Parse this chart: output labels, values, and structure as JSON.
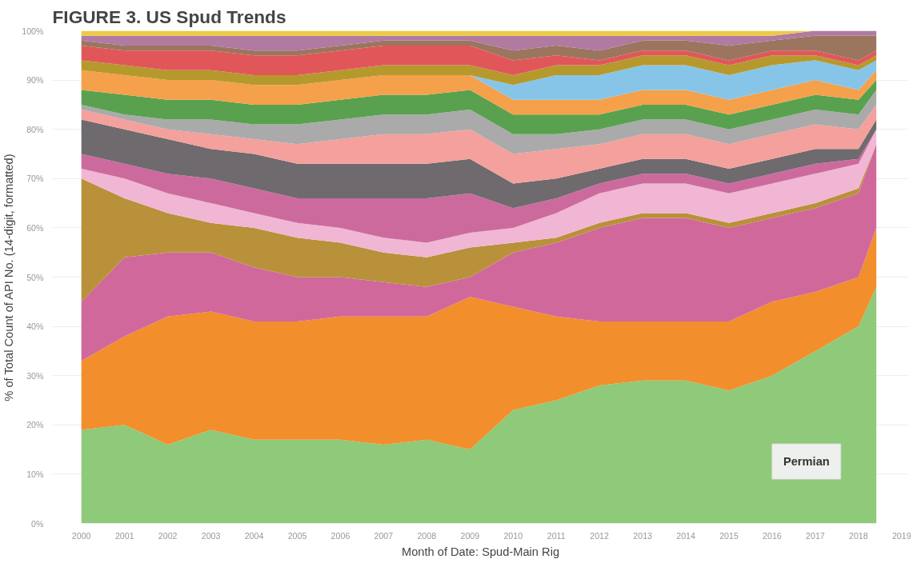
{
  "chart_data": {
    "type": "area",
    "stacked": true,
    "title": "FIGURE 3. US Spud Trends",
    "xlabel": "Month of Date: Spud-Main Rig",
    "ylabel": "% of Total Count of API No. (14-digit, formatted)",
    "x": [
      "2000-01",
      "2001-01",
      "2002-01",
      "2003-01",
      "2004-01",
      "2005-01",
      "2006-01",
      "2007-01",
      "2008-01",
      "2009-01",
      "2010-01",
      "2011-01",
      "2012-01",
      "2013-01",
      "2014-01",
      "2015-01",
      "2016-01",
      "2017-01",
      "2018-01",
      "2018-06"
    ],
    "xlim": [
      "1999-05",
      "2019-03"
    ],
    "xticks": [
      "2000",
      "2001",
      "2002",
      "2003",
      "2004",
      "2005",
      "2006",
      "2007",
      "2008",
      "2009",
      "2010",
      "2011",
      "2012",
      "2013",
      "2014",
      "2015",
      "2016",
      "2017",
      "2018",
      "2019"
    ],
    "ylim": [
      0,
      100
    ],
    "yticks": [
      {
        "value": 0,
        "label": "0%"
      },
      {
        "value": 10,
        "label": "10%"
      },
      {
        "value": 20,
        "label": "20%"
      },
      {
        "value": 30,
        "label": "30%"
      },
      {
        "value": 40,
        "label": "40%"
      },
      {
        "value": 50,
        "label": "50%"
      },
      {
        "value": 60,
        "label": "60%"
      },
      {
        "value": 70,
        "label": "70%"
      },
      {
        "value": 80,
        "label": "80%"
      },
      {
        "value": 90,
        "label": "90%"
      },
      {
        "value": 100,
        "label": "100%"
      }
    ],
    "grid": "y",
    "series": [
      {
        "name": "Permian",
        "color": "#8fc97a",
        "values": [
          19,
          20,
          16,
          19,
          17,
          17,
          17,
          16,
          17,
          15,
          23,
          25,
          28,
          29,
          29,
          27,
          30,
          35,
          40,
          48
        ]
      },
      {
        "color": "#f28e2b",
        "values": [
          14,
          18,
          26,
          24,
          24,
          24,
          25,
          26,
          25,
          31,
          21,
          17,
          13,
          12,
          12,
          14,
          15,
          12,
          10,
          12
        ]
      },
      {
        "color": "#d1689b",
        "values": [
          12,
          16,
          13,
          12,
          11,
          9,
          8,
          7,
          6,
          4,
          11,
          15,
          19,
          21,
          21,
          19,
          17,
          17,
          17,
          17
        ]
      },
      {
        "color": "#b8913a",
        "values": [
          25,
          12,
          8,
          6,
          8,
          8,
          7,
          6,
          6,
          6,
          2,
          1,
          1,
          1,
          1,
          1,
          1,
          1,
          1,
          0
        ]
      },
      {
        "color": "#f1b6d3",
        "values": [
          2,
          4,
          4,
          4,
          3,
          3,
          3,
          3,
          3,
          3,
          3,
          5,
          6,
          6,
          6,
          6,
          6,
          6,
          5,
          3
        ]
      },
      {
        "color": "#cc6a9e",
        "values": [
          3,
          3,
          4,
          5,
          5,
          5,
          6,
          8,
          9,
          8,
          4,
          3,
          2,
          2,
          2,
          2,
          2,
          2,
          1,
          0
        ]
      },
      {
        "color": "#6e6a6e",
        "values": [
          7,
          7,
          7,
          6,
          7,
          7,
          7,
          7,
          7,
          7,
          5,
          4,
          3,
          3,
          3,
          3,
          3,
          3,
          2,
          2
        ]
      },
      {
        "color": "#f4a09c",
        "values": [
          2,
          2,
          2,
          3,
          3,
          4,
          5,
          6,
          6,
          6,
          6,
          6,
          5,
          5,
          5,
          5,
          5,
          5,
          4,
          3
        ]
      },
      {
        "color": "#aaaaaa",
        "values": [
          1,
          1,
          2,
          3,
          3,
          4,
          4,
          4,
          4,
          4,
          4,
          3,
          3,
          3,
          3,
          3,
          3,
          3,
          3,
          3
        ]
      },
      {
        "color": "#59a14f",
        "values": [
          3,
          4,
          4,
          4,
          4,
          4,
          4,
          4,
          4,
          4,
          4,
          4,
          3,
          3,
          3,
          3,
          3,
          3,
          3,
          2
        ]
      },
      {
        "color": "#f5a04a",
        "values": [
          4,
          4,
          4,
          4,
          4,
          4,
          4,
          4,
          4,
          3,
          3,
          3,
          3,
          3,
          3,
          3,
          3,
          3,
          2,
          2
        ]
      },
      {
        "color": "#86c5e8",
        "values": [
          0,
          0,
          0,
          0,
          0,
          0,
          0,
          0,
          0,
          0,
          3,
          5,
          5,
          5,
          5,
          5,
          5,
          4,
          4,
          2
        ]
      },
      {
        "color": "#b6992d",
        "values": [
          2,
          2,
          2,
          2,
          2,
          2,
          2,
          2,
          2,
          2,
          2,
          2,
          2,
          2,
          2,
          2,
          2,
          1,
          1,
          1
        ]
      },
      {
        "color": "#e15759",
        "values": [
          3,
          3,
          4,
          4,
          4,
          4,
          4,
          4,
          4,
          4,
          3,
          2,
          1,
          1,
          1,
          1,
          1,
          1,
          1,
          1
        ]
      },
      {
        "color": "#9c755f",
        "values": [
          1,
          1,
          1,
          1,
          1,
          1,
          1,
          1,
          1,
          1,
          2,
          2,
          2,
          2,
          2,
          3,
          2,
          3,
          5,
          3
        ]
      },
      {
        "color": "#b07aa1",
        "values": [
          1,
          2,
          2,
          2,
          3,
          3,
          2,
          1,
          1,
          1,
          3,
          2,
          3,
          1,
          1,
          2,
          1,
          1,
          1,
          1
        ]
      },
      {
        "color": "#edc948",
        "values": [
          1,
          1,
          1,
          1,
          1,
          1,
          1,
          1,
          1,
          1,
          1,
          1,
          1,
          1,
          1,
          1,
          1,
          0,
          0,
          0
        ]
      }
    ]
  }
}
